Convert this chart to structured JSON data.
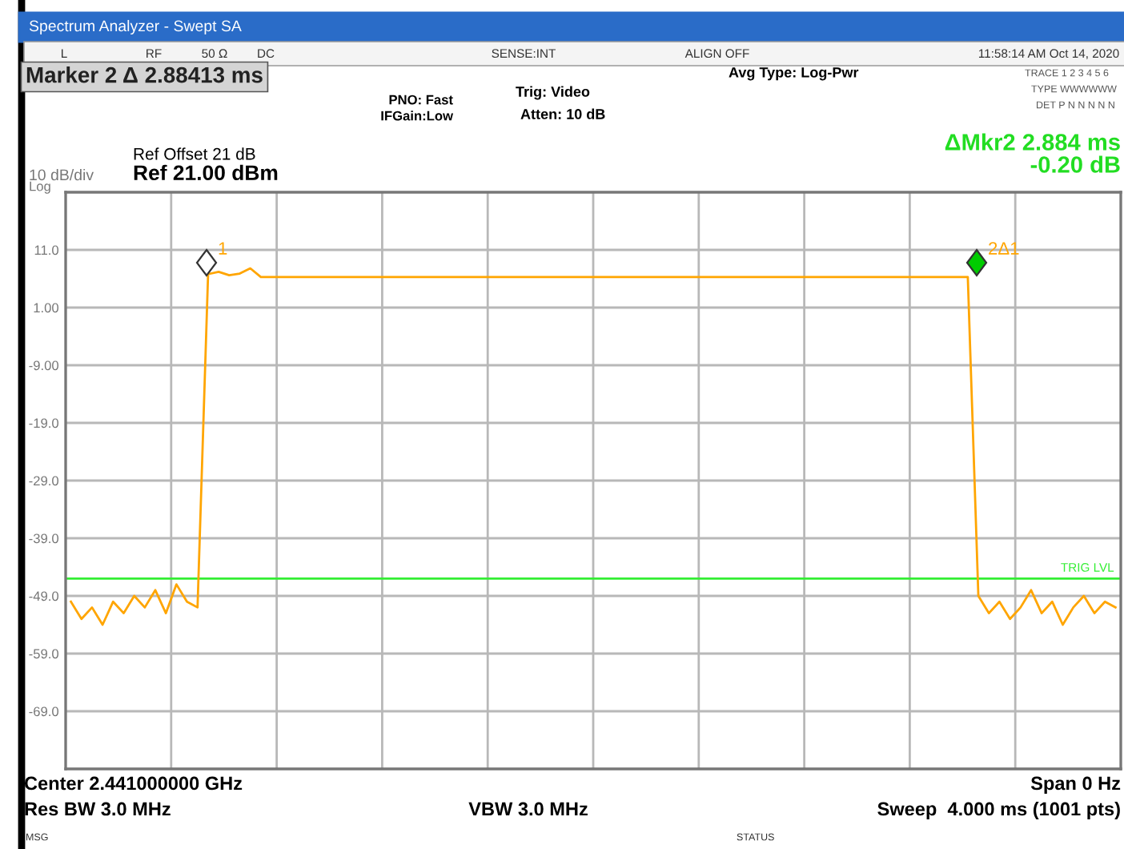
{
  "chart_data": {
    "type": "line",
    "title": "Spectrum Analyzer - Swept SA",
    "categories": [
      null,
      null,
      null,
      null,
      null,
      null,
      null,
      null,
      null,
      null,
      null,
      null,
      null,
      null,
      null,
      null,
      null,
      null,
      null,
      null,
      null,
      null,
      null,
      null,
      null,
      null,
      null,
      null,
      null,
      null,
      null,
      null,
      null,
      null,
      null,
      null,
      null,
      null,
      null,
      null,
      null,
      null,
      null,
      null,
      null,
      null,
      null,
      null,
      null,
      null,
      null,
      null,
      null,
      null,
      null,
      null,
      null,
      null,
      null,
      null,
      null,
      null,
      null,
      null,
      null,
      null,
      null,
      null,
      null,
      null,
      null,
      null,
      null,
      null,
      null,
      null,
      null,
      null,
      null,
      null,
      null,
      null,
      null,
      null,
      null,
      null,
      null,
      null,
      null,
      null,
      null,
      null,
      null,
      null,
      null,
      null,
      null,
      null,
      null,
      null
    ],
    "ylim": [
      -79,
      21
    ],
    "yticks": [
      {
        "value": 11,
        "label": "11.0"
      },
      {
        "value": 1,
        "label": "1.00"
      },
      {
        "value": -9,
        "label": "-9.00"
      },
      {
        "value": -19,
        "label": "-19.0"
      },
      {
        "value": -29,
        "label": "-29.0"
      },
      {
        "value": -39,
        "label": "-39.0"
      },
      {
        "value": -49,
        "label": "-49.0"
      },
      {
        "value": -59,
        "label": "-59.0"
      },
      {
        "value": -69,
        "label": "-69.0"
      }
    ],
    "tick_labels": "y",
    "grid": true,
    "series": [
      {
        "color": "#ffa500",
        "values": [
          -50,
          -53,
          -51,
          -54,
          -50,
          -52,
          -49,
          -51,
          -48,
          -52,
          -47,
          -50,
          -51,
          6.8,
          7.2,
          6.6,
          6.9,
          7.8,
          6.3,
          6.3,
          6.3,
          6.3,
          6.3,
          6.3,
          6.3,
          6.3,
          6.3,
          6.3,
          6.3,
          6.3,
          6.3,
          6.3,
          6.3,
          6.3,
          6.3,
          6.3,
          6.3,
          6.3,
          6.3,
          6.3,
          6.3,
          6.3,
          6.3,
          6.3,
          6.3,
          6.3,
          6.3,
          6.3,
          6.3,
          6.3,
          6.3,
          6.3,
          6.3,
          6.3,
          6.3,
          6.3,
          6.3,
          6.3,
          6.3,
          6.3,
          6.3,
          6.3,
          6.3,
          6.3,
          6.3,
          6.3,
          6.3,
          6.3,
          6.3,
          6.3,
          6.3,
          6.3,
          6.3,
          6.3,
          6.3,
          6.3,
          6.3,
          6.3,
          6.3,
          6.3,
          6.3,
          6.3,
          6.3,
          6.3,
          6.3,
          6.3,
          -49,
          -52,
          -50,
          -53,
          -51,
          -48,
          -52,
          -50,
          -54,
          -51,
          -49,
          -52,
          -50,
          -51
        ]
      }
    ],
    "ref_lines": [
      {
        "axis": "y",
        "value": -46,
        "label": "TRIG LVL",
        "color": "#33ee33"
      }
    ],
    "annotations": [
      "L",
      "RF",
      "50 Ω",
      "DC",
      "SENSE:INT",
      "ALIGN OFF",
      "11:58:14 AM Oct 14, 2020",
      "Marker 2 Δ 2.88413 ms",
      "PNO: Fast",
      "IFGain:Low",
      "Trig: Video",
      "Atten: 10 dB",
      "Avg Type: Log-Pwr",
      "TRACE 1 2 3 4 5 6",
      "TYPE WWWWWW",
      "DET P N N N N N",
      "Ref Offset 21 dB",
      "Ref 21.00 dBm",
      "10 dB/div",
      "Log",
      "ΔMkr2 2.884 ms",
      "-0.20 dB",
      "Center 2.441000000 GHz",
      "Span 0 Hz",
      "Res BW 3.0 MHz",
      "VBW 3.0 MHz",
      "Sweep  4.000 ms (1001 pts)",
      "MSG",
      "STATUS",
      "1",
      "2Δ1"
    ]
  }
}
